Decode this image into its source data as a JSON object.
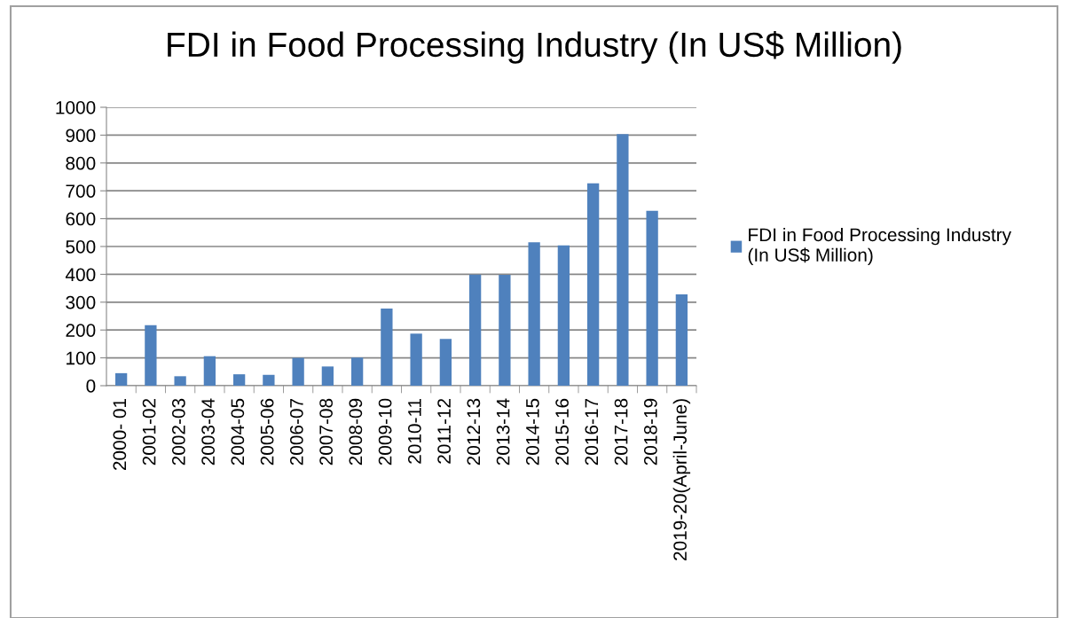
{
  "chart_data": {
    "type": "bar",
    "title": "FDI in Food Processing Industry (In US$ Million)",
    "categories": [
      "2000- 01",
      "2001-02",
      "2002-03",
      "2003-04",
      "2004-05",
      "2005-06",
      "2006-07",
      "2007-08",
      "2008-09",
      "2009-10",
      "2010-11",
      "2011-12",
      "2012-13",
      "2013-14",
      "2014-15",
      "2015-16",
      "2016-17",
      "2017-18",
      "2018-19",
      "2019-20(April-June)"
    ],
    "series": [
      {
        "name": "FDI in Food Processing Industry\n(In US$ Million)",
        "color": "#4f81bd",
        "values": [
          45,
          217,
          34,
          106,
          41,
          39,
          100,
          69,
          101,
          277,
          187,
          168,
          399,
          398,
          515,
          504,
          727,
          904,
          628,
          328
        ]
      }
    ],
    "ylim": [
      0,
      1000
    ],
    "yticks": [
      0,
      100,
      200,
      300,
      400,
      500,
      600,
      700,
      800,
      900,
      1000
    ],
    "grid": "y",
    "legend": "right"
  }
}
